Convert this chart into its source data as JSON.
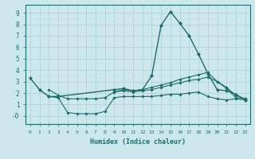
{
  "xlabel": "Humidex (Indice chaleur)",
  "bg_color": "#cde8ed",
  "grid_color": "#aacdd4",
  "line_color": "#1a6e6a",
  "x_values": [
    0,
    1,
    2,
    3,
    4,
    5,
    6,
    7,
    8,
    9,
    10,
    11,
    12,
    13,
    14,
    15,
    16,
    17,
    18,
    19,
    20,
    21,
    22,
    23
  ],
  "line1": [
    3.3,
    2.3,
    1.7,
    1.7,
    null,
    null,
    null,
    null,
    null,
    2.3,
    2.4,
    2.2,
    2.3,
    3.5,
    7.9,
    9.1,
    8.1,
    7.0,
    5.4,
    3.7,
    2.3,
    2.2,
    1.9,
    1.4
  ],
  "line2": [
    null,
    null,
    2.3,
    1.8,
    1.5,
    1.5,
    1.5,
    1.5,
    1.6,
    2.1,
    2.2,
    2.1,
    2.2,
    2.3,
    2.5,
    2.7,
    2.9,
    3.1,
    3.2,
    3.4,
    3.0,
    2.4,
    1.6,
    1.5
  ],
  "line3": [
    null,
    null,
    1.7,
    1.6,
    0.3,
    0.2,
    0.2,
    0.2,
    0.4,
    1.6,
    1.7,
    1.7,
    1.7,
    1.7,
    1.8,
    1.9,
    1.9,
    2.0,
    2.1,
    1.7,
    1.5,
    1.4,
    1.5,
    1.4
  ],
  "line4": [
    null,
    null,
    null,
    null,
    null,
    null,
    null,
    null,
    null,
    2.1,
    2.3,
    2.2,
    2.3,
    2.5,
    2.7,
    2.9,
    3.2,
    3.4,
    3.6,
    3.8,
    3.0,
    2.5,
    1.8,
    1.5
  ],
  "xlim": [
    -0.5,
    23.5
  ],
  "ylim": [
    -0.7,
    9.7
  ],
  "yticks": [
    0,
    1,
    2,
    3,
    4,
    5,
    6,
    7,
    8,
    9
  ],
  "ytick_labels": [
    "-0",
    "1",
    "2",
    "3",
    "4",
    "5",
    "6",
    "7",
    "8",
    "9"
  ],
  "xticks": [
    0,
    1,
    2,
    3,
    4,
    5,
    6,
    7,
    8,
    9,
    10,
    11,
    12,
    13,
    14,
    15,
    16,
    17,
    18,
    19,
    20,
    21,
    22,
    23
  ]
}
